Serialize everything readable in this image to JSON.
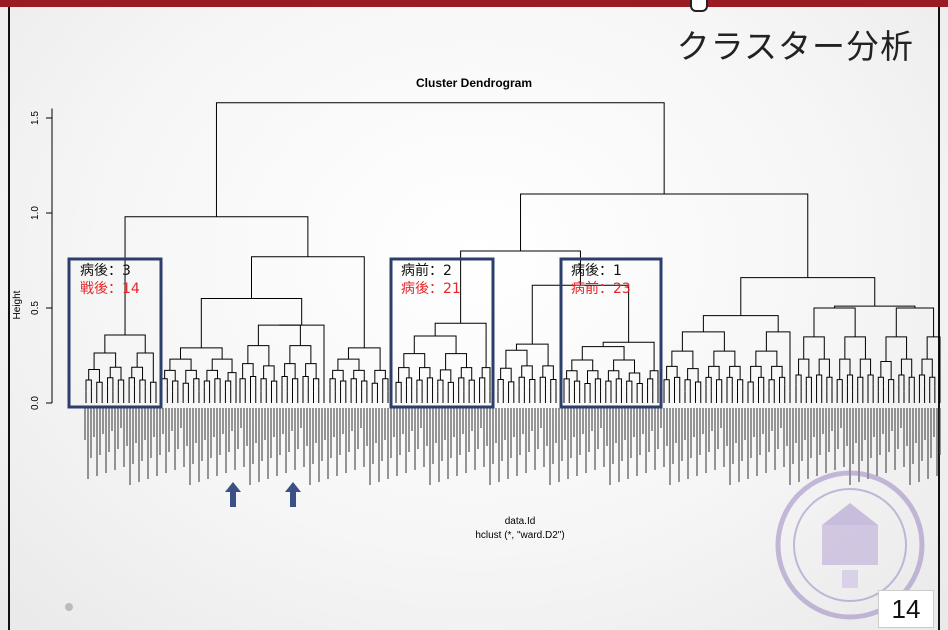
{
  "slide": {
    "title": "クラスター分析",
    "page_number": "14"
  },
  "chart_data": {
    "type": "dendrogram",
    "title": "Cluster Dendrogram",
    "xlabel": "data.Id",
    "subtitle": "hclust (*, \"ward.D2\")",
    "ylabel": "Height",
    "ylim": [
      0,
      1.65
    ],
    "yticks": [
      "0.0",
      "0.5",
      "1.0",
      "1.5"
    ],
    "merge_heights": {
      "root": 1.58,
      "left_top": 0.98,
      "left_right": 0.77,
      "right_top": 1.1,
      "right_right": 0.66
    },
    "annotations": [
      {
        "lines": [
          "病後：3",
          "戦後：14"
        ]
      },
      {
        "lines": [
          "病前：2",
          "病後：21"
        ]
      },
      {
        "lines": [
          "病後：1",
          "病前：23"
        ]
      }
    ],
    "colors": {
      "highlight_box": "#2c3e6b",
      "annotation_red": "#e8262a",
      "arrow": "#3c4f86",
      "title_bar": "#9b1b22"
    }
  }
}
